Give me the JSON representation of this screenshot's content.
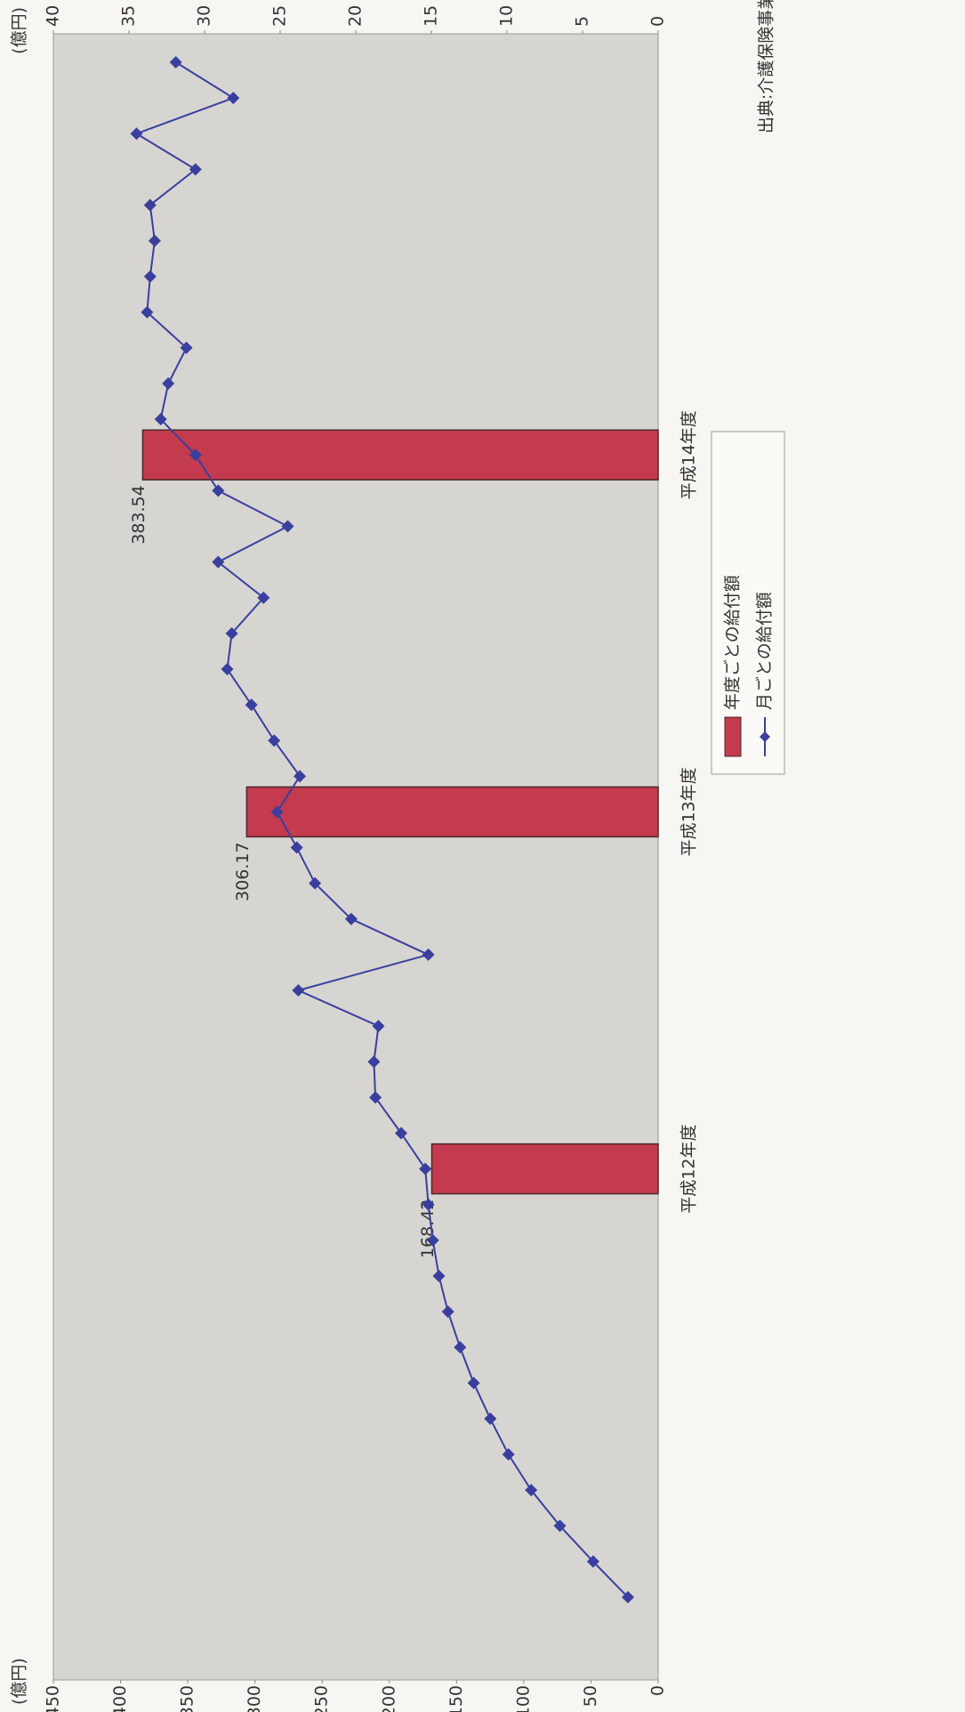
{
  "chart_data": {
    "type": "bar-line",
    "y_label": "(億円)",
    "y2_label": "(億円)",
    "note": "出典:介護保険事業状況報告",
    "categories": [
      null,
      null,
      null,
      null,
      null,
      null,
      null,
      null,
      null,
      null,
      null,
      null,
      "平成12年度",
      null,
      null,
      null,
      null,
      null,
      null,
      null,
      null,
      null,
      "平成13年度",
      null,
      null,
      null,
      null,
      null,
      null,
      null,
      null,
      null,
      "平成14年度",
      null,
      null,
      null,
      null,
      null,
      null,
      null,
      null,
      null,
      null,
      null
    ],
    "series": [
      {
        "name": "年度ごとの給付額",
        "type": "bar",
        "color": "#c43a4e",
        "values": [
          null,
          null,
          null,
          null,
          null,
          null,
          null,
          null,
          null,
          null,
          null,
          null,
          168.42,
          null,
          null,
          null,
          null,
          null,
          null,
          null,
          null,
          null,
          306.17,
          null,
          null,
          null,
          null,
          null,
          null,
          null,
          null,
          null,
          383.54,
          null,
          null,
          null,
          null,
          null,
          null,
          null,
          null,
          null,
          null,
          null
        ]
      },
      {
        "name": "月ごとの給付額",
        "type": "line",
        "axis": "y2",
        "color": "#3a3f9e",
        "values": [
          2.0,
          4.3,
          6.5,
          8.4,
          9.9,
          11.1,
          12.2,
          13.1,
          13.9,
          14.5,
          14.9,
          15.2,
          15.4,
          17.0,
          18.7,
          18.8,
          18.5,
          23.8,
          15.2,
          20.3,
          22.7,
          23.9,
          25.2,
          23.7,
          25.4,
          26.9,
          28.5,
          28.2,
          26.1,
          29.1,
          24.5,
          29.1,
          30.6,
          32.9,
          32.4,
          31.2,
          33.8,
          33.6,
          33.3,
          33.6,
          30.6,
          34.5,
          28.1,
          31.9
        ]
      }
    ],
    "ylim": [
      0,
      450
    ],
    "yticks": [
      0,
      50,
      100,
      150,
      200,
      250,
      300,
      350,
      400,
      450
    ],
    "y2lim": [
      0,
      40
    ],
    "y2ticks": [
      0,
      5,
      10,
      15,
      20,
      25,
      30,
      35,
      40
    ],
    "grid": false,
    "legend": "bottom"
  }
}
